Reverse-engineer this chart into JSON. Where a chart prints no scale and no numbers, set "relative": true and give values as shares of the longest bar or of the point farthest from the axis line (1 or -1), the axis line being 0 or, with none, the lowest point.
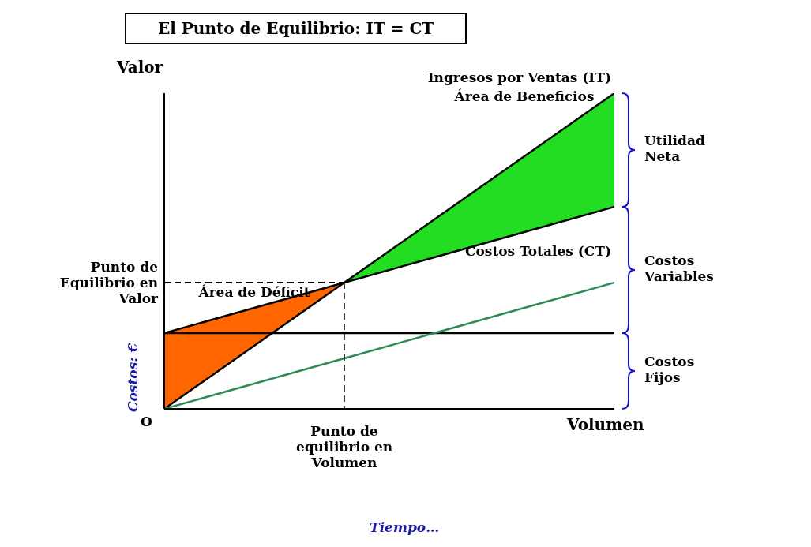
{
  "chart_data": {
    "type": "line",
    "title": "El Punto de Equilibrio: IT = CT",
    "xlabel": "Volumen",
    "ylabel": "Valor",
    "relative": true,
    "legend": false,
    "grid": false,
    "marker": "none",
    "categories": [
      null,
      null,
      null,
      null,
      null,
      null
    ],
    "series": [
      {
        "name": "Ingresos por Ventas (IT)",
        "color": "#000000",
        "values": [
          0,
          0.2,
          0.4,
          0.6,
          0.8,
          1
        ]
      },
      {
        "name": "Costos Totales (CT)",
        "color": "#000000",
        "values": [
          0.24,
          0.32,
          0.4,
          0.48,
          0.56,
          0.64
        ]
      },
      {
        "color": "#000000",
        "values": [
          0.24,
          0.24,
          0.24,
          0.24,
          0.24,
          0.24
        ]
      },
      {
        "color": "#2e8b57",
        "values": [
          0,
          0.08,
          0.16,
          0.24,
          0.32,
          0.4
        ]
      },
      {
        "type": "area",
        "name": "Área de Déficit",
        "color": "#ff6600",
        "values": [
          0.24,
          0.32,
          0.4,
          null,
          null,
          null
        ]
      },
      {
        "type": "area",
        "name": "Área de Beneficios",
        "color": "#22dd22",
        "values": [
          null,
          null,
          0.4,
          0.6,
          0.8,
          1
        ]
      }
    ],
    "ref_lines": [
      {
        "axis": "y",
        "value": 0.4,
        "label": "Punto de Equilibrio en Valor",
        "line_style": "dashed"
      }
    ],
    "annotations": [
      "Punto de equilibrio en Volumen",
      "O",
      "Utilidad Neta",
      "Costos Variables",
      "Costos Fijos",
      "Costos: €",
      "Tiempo…"
    ]
  }
}
